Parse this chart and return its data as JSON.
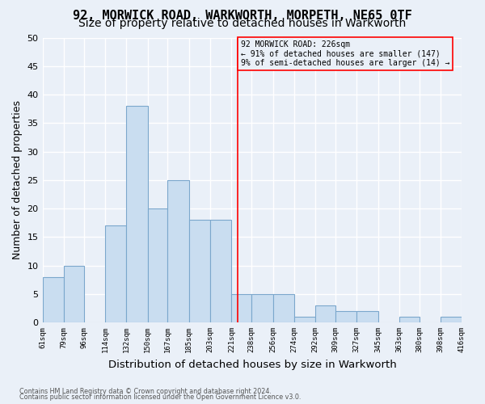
{
  "title1": "92, MORWICK ROAD, WARKWORTH, MORPETH, NE65 0TF",
  "title2": "Size of property relative to detached houses in Warkworth",
  "xlabel": "Distribution of detached houses by size in Warkworth",
  "ylabel": "Number of detached properties",
  "footnote1": "Contains HM Land Registry data © Crown copyright and database right 2024.",
  "footnote2": "Contains public sector information licensed under the Open Government Licence v3.0.",
  "annotation_line1": "92 MORWICK ROAD: 226sqm",
  "annotation_line2": "← 91% of detached houses are smaller (147)",
  "annotation_line3": "9% of semi-detached houses are larger (14) →",
  "bar_heights": [
    8,
    10,
    0,
    17,
    38,
    20,
    25,
    18,
    18,
    5,
    5,
    5,
    1,
    3,
    2,
    2,
    0,
    1,
    0,
    1
  ],
  "bin_edges": [
    61,
    79,
    96,
    114,
    132,
    150,
    167,
    185,
    203,
    221,
    238,
    256,
    274,
    292,
    309,
    327,
    345,
    363,
    380,
    398,
    416
  ],
  "bar_color": "#c9ddf0",
  "bar_edge_color": "#7ba7cc",
  "property_line_x": 226,
  "ylim": [
    0,
    50
  ],
  "yticks": [
    0,
    5,
    10,
    15,
    20,
    25,
    30,
    35,
    40,
    45,
    50
  ],
  "bg_color": "#eaf0f8",
  "grid_color": "#ffffff",
  "title1_fontsize": 11,
  "title2_fontsize": 10,
  "xlabel_fontsize": 9.5,
  "ylabel_fontsize": 9
}
